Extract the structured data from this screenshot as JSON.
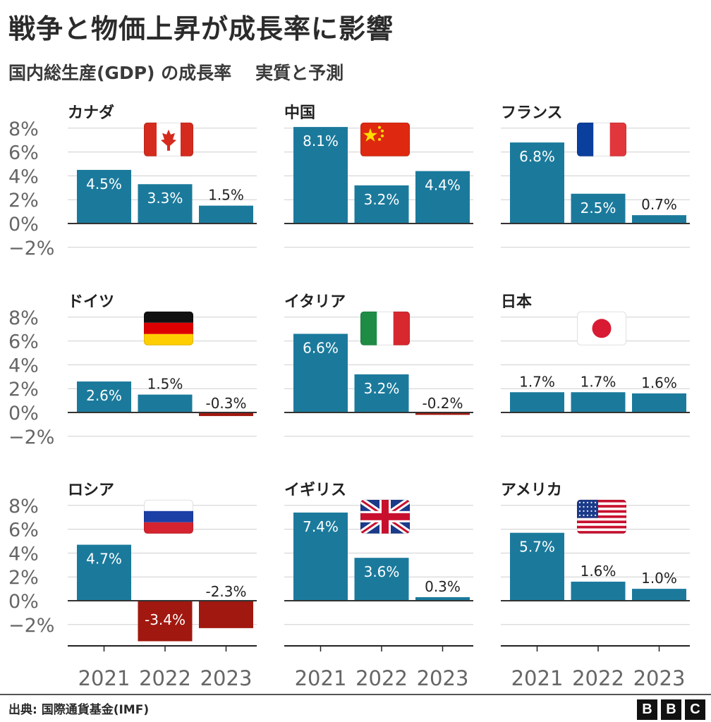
{
  "title": "戦争と物価上昇が成長率に影響",
  "subtitle": {
    "left": "国内総生産(GDP) の成長率",
    "right": "実質と予測"
  },
  "source": "出典: 国際通貨基金(IMF)",
  "logo": [
    "B",
    "B",
    "C"
  ],
  "colors": {
    "positive": "#1b7a9c",
    "negative": "#a0180f",
    "grid": "#cfcfcf",
    "zero": "#333333",
    "axis_text": "#666666",
    "label_text": "#222222"
  },
  "chart_data": {
    "type": "bar",
    "categories": [
      "2021",
      "2022",
      "2023"
    ],
    "y_ticks": [
      "8%",
      "6%",
      "4%",
      "2%",
      "0%",
      "−2%"
    ],
    "y_tick_values": [
      8,
      6,
      4,
      2,
      0,
      -2
    ],
    "ylim": [
      -3.4,
      8.1
    ],
    "unit": "%",
    "grid": true,
    "panels": [
      {
        "name": "カナダ",
        "flag": "canada-flag",
        "values": [
          4.5,
          3.3,
          1.5
        ],
        "labels": [
          "4.5%",
          "3.3%",
          "1.5%"
        ]
      },
      {
        "name": "中国",
        "flag": "china-flag",
        "values": [
          8.1,
          3.2,
          4.4
        ],
        "labels": [
          "8.1%",
          "3.2%",
          "4.4%"
        ]
      },
      {
        "name": "フランス",
        "flag": "france-flag",
        "values": [
          6.8,
          2.5,
          0.7
        ],
        "labels": [
          "6.8%",
          "2.5%",
          "0.7%"
        ]
      },
      {
        "name": "ドイツ",
        "flag": "germany-flag",
        "values": [
          2.6,
          1.5,
          -0.3
        ],
        "labels": [
          "2.6%",
          "1.5%",
          "-0.3%"
        ]
      },
      {
        "name": "イタリア",
        "flag": "italy-flag",
        "values": [
          6.6,
          3.2,
          -0.2
        ],
        "labels": [
          "6.6%",
          "3.2%",
          "-0.2%"
        ]
      },
      {
        "name": "日本",
        "flag": "japan-flag",
        "values": [
          1.7,
          1.7,
          1.6
        ],
        "labels": [
          "1.7%",
          "1.7%",
          "1.6%"
        ]
      },
      {
        "name": "ロシア",
        "flag": "russia-flag",
        "values": [
          4.7,
          -3.4,
          -2.3
        ],
        "labels": [
          "4.7%",
          "-3.4%",
          "-2.3%"
        ]
      },
      {
        "name": "イギリス",
        "flag": "uk-flag",
        "values": [
          7.4,
          3.6,
          0.3
        ],
        "labels": [
          "7.4%",
          "3.6%",
          "0.3%"
        ]
      },
      {
        "name": "アメリカ",
        "flag": "usa-flag",
        "values": [
          5.7,
          1.6,
          1.0
        ],
        "labels": [
          "5.7%",
          "1.6%",
          "1.0%"
        ]
      }
    ]
  }
}
